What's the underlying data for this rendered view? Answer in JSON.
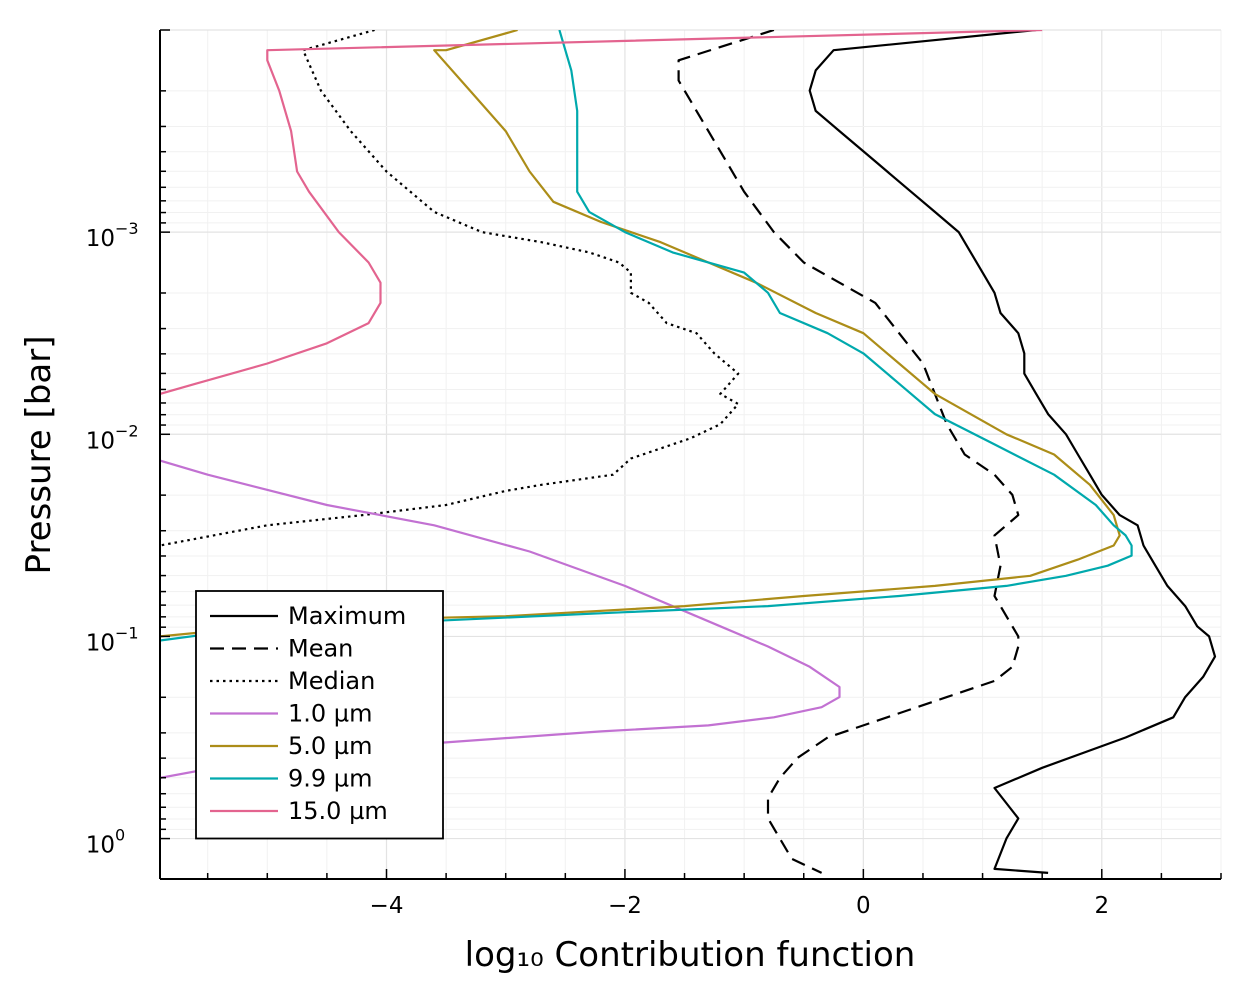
{
  "chart_data": {
    "type": "line",
    "xlabel": "log₁₀ Contribution function",
    "ylabel": "Pressure [bar]",
    "xlim": [
      -5.9,
      3.0
    ],
    "ylim_log10": [
      -4.0,
      0.2
    ],
    "y_scale": "log",
    "grid": true,
    "legend_position": "bottom-left",
    "x_ticks": [
      {
        "value": -4,
        "label": "−4"
      },
      {
        "value": -2,
        "label": "−2"
      },
      {
        "value": 0,
        "label": "0"
      },
      {
        "value": 2,
        "label": "2"
      }
    ],
    "y_ticks": [
      {
        "exp": -3,
        "base": "10",
        "sup": "−3"
      },
      {
        "exp": -2,
        "base": "10",
        "sup": "−2"
      },
      {
        "exp": -1,
        "base": "10",
        "sup": "−1"
      },
      {
        "exp": 0,
        "base": "10",
        "sup": "0"
      }
    ],
    "series": [
      {
        "name": "Maximum",
        "color": "#000000",
        "dash": "solid",
        "points": [
          [
            1.45,
            -4.0
          ],
          [
            -0.25,
            -3.9
          ],
          [
            -0.4,
            -3.8
          ],
          [
            -0.45,
            -3.7
          ],
          [
            -0.4,
            -3.6
          ],
          [
            -0.2,
            -3.5
          ],
          [
            0.1,
            -3.35
          ],
          [
            0.4,
            -3.2
          ],
          [
            0.6,
            -3.1
          ],
          [
            0.8,
            -3.0
          ],
          [
            0.9,
            -2.9
          ],
          [
            1.0,
            -2.8
          ],
          [
            1.1,
            -2.7
          ],
          [
            1.15,
            -2.6
          ],
          [
            1.3,
            -2.5
          ],
          [
            1.35,
            -2.4
          ],
          [
            1.35,
            -2.3
          ],
          [
            1.45,
            -2.2
          ],
          [
            1.55,
            -2.1
          ],
          [
            1.7,
            -2.0
          ],
          [
            1.8,
            -1.9
          ],
          [
            1.9,
            -1.8
          ],
          [
            2.0,
            -1.7
          ],
          [
            2.15,
            -1.6
          ],
          [
            2.3,
            -1.55
          ],
          [
            2.35,
            -1.45
          ],
          [
            2.45,
            -1.35
          ],
          [
            2.55,
            -1.25
          ],
          [
            2.7,
            -1.15
          ],
          [
            2.8,
            -1.05
          ],
          [
            2.9,
            -1.0
          ],
          [
            2.95,
            -0.9
          ],
          [
            2.85,
            -0.8
          ],
          [
            2.7,
            -0.7
          ],
          [
            2.6,
            -0.6
          ],
          [
            2.2,
            -0.5
          ],
          [
            1.5,
            -0.35
          ],
          [
            1.1,
            -0.25
          ],
          [
            1.3,
            -0.1
          ],
          [
            1.2,
            0.0
          ],
          [
            1.1,
            0.15
          ],
          [
            1.55,
            0.17
          ]
        ]
      },
      {
        "name": "Mean",
        "color": "#000000",
        "dash": "dashed",
        "points": [
          [
            -0.75,
            -4.0
          ],
          [
            -1.55,
            -3.85
          ],
          [
            -1.55,
            -3.75
          ],
          [
            -1.4,
            -3.6
          ],
          [
            -1.2,
            -3.4
          ],
          [
            -1.0,
            -3.2
          ],
          [
            -0.75,
            -3.0
          ],
          [
            -0.5,
            -2.85
          ],
          [
            -0.2,
            -2.75
          ],
          [
            0.1,
            -2.65
          ],
          [
            0.3,
            -2.5
          ],
          [
            0.5,
            -2.35
          ],
          [
            0.6,
            -2.2
          ],
          [
            0.7,
            -2.05
          ],
          [
            0.85,
            -1.9
          ],
          [
            1.1,
            -1.8
          ],
          [
            1.25,
            -1.7
          ],
          [
            1.3,
            -1.6
          ],
          [
            1.1,
            -1.5
          ],
          [
            1.15,
            -1.35
          ],
          [
            1.1,
            -1.2
          ],
          [
            1.3,
            -1.0
          ],
          [
            1.3,
            -0.95
          ],
          [
            1.25,
            -0.85
          ],
          [
            1.1,
            -0.78
          ],
          [
            0.7,
            -0.7
          ],
          [
            0.2,
            -0.6
          ],
          [
            -0.3,
            -0.5
          ],
          [
            -0.55,
            -0.4
          ],
          [
            -0.7,
            -0.3
          ],
          [
            -0.8,
            -0.2
          ],
          [
            -0.8,
            -0.1
          ],
          [
            -0.7,
            0.0
          ],
          [
            -0.6,
            0.1
          ],
          [
            -0.35,
            0.17
          ]
        ]
      },
      {
        "name": "Median",
        "color": "#000000",
        "dash": "dotted",
        "points": [
          [
            -4.1,
            -4.0
          ],
          [
            -4.7,
            -3.9
          ],
          [
            -4.55,
            -3.7
          ],
          [
            -4.3,
            -3.5
          ],
          [
            -4.0,
            -3.3
          ],
          [
            -3.6,
            -3.1
          ],
          [
            -3.2,
            -3.0
          ],
          [
            -2.7,
            -2.95
          ],
          [
            -2.3,
            -2.9
          ],
          [
            -2.05,
            -2.85
          ],
          [
            -1.95,
            -2.8
          ],
          [
            -1.95,
            -2.7
          ],
          [
            -1.8,
            -2.65
          ],
          [
            -1.65,
            -2.55
          ],
          [
            -1.4,
            -2.5
          ],
          [
            -1.25,
            -2.4
          ],
          [
            -1.05,
            -2.3
          ],
          [
            -1.2,
            -2.2
          ],
          [
            -1.05,
            -2.15
          ],
          [
            -1.2,
            -2.05
          ],
          [
            -1.45,
            -1.98
          ],
          [
            -1.95,
            -1.88
          ],
          [
            -2.1,
            -1.8
          ],
          [
            -2.7,
            -1.75
          ],
          [
            -3.0,
            -1.72
          ],
          [
            -3.5,
            -1.65
          ],
          [
            -4.2,
            -1.6
          ],
          [
            -5.0,
            -1.55
          ],
          [
            -5.9,
            -1.45
          ]
        ]
      },
      {
        "name": "1.0 µm",
        "color": "#C271D2",
        "dash": "solid",
        "points": [
          [
            -5.9,
            -1.87
          ],
          [
            -5.5,
            -1.8
          ],
          [
            -4.5,
            -1.65
          ],
          [
            -3.6,
            -1.55
          ],
          [
            -2.8,
            -1.42
          ],
          [
            -2.0,
            -1.25
          ],
          [
            -1.2,
            -1.05
          ],
          [
            -0.8,
            -0.95
          ],
          [
            -0.45,
            -0.85
          ],
          [
            -0.2,
            -0.75
          ],
          [
            -0.2,
            -0.7
          ],
          [
            -0.35,
            -0.65
          ],
          [
            -0.75,
            -0.6
          ],
          [
            -1.3,
            -0.56
          ],
          [
            -2.2,
            -0.53
          ],
          [
            -3.4,
            -0.48
          ],
          [
            -4.8,
            -0.42
          ],
          [
            -5.9,
            -0.3
          ]
        ]
      },
      {
        "name": "5.0 µm",
        "color": "#AC8D18",
        "dash": "solid",
        "points": [
          [
            -2.9,
            -4.0
          ],
          [
            -3.5,
            -3.9
          ],
          [
            -3.6,
            -3.9
          ],
          [
            -3.3,
            -3.7
          ],
          [
            -3.0,
            -3.5
          ],
          [
            -2.8,
            -3.3
          ],
          [
            -2.6,
            -3.15
          ],
          [
            -2.2,
            -3.05
          ],
          [
            -1.7,
            -2.95
          ],
          [
            -1.3,
            -2.85
          ],
          [
            -0.9,
            -2.75
          ],
          [
            -0.4,
            -2.6
          ],
          [
            0.0,
            -2.5
          ],
          [
            0.3,
            -2.35
          ],
          [
            0.6,
            -2.2
          ],
          [
            1.2,
            -2.0
          ],
          [
            1.6,
            -1.9
          ],
          [
            1.9,
            -1.75
          ],
          [
            2.1,
            -1.6
          ],
          [
            2.15,
            -1.5
          ],
          [
            2.1,
            -1.45
          ],
          [
            1.8,
            -1.38
          ],
          [
            1.4,
            -1.3
          ],
          [
            0.6,
            -1.25
          ],
          [
            -0.5,
            -1.2
          ],
          [
            -1.5,
            -1.15
          ],
          [
            -3.0,
            -1.1
          ],
          [
            -4.5,
            -1.08
          ],
          [
            -5.9,
            -1.0
          ]
        ]
      },
      {
        "name": "9.9 µm",
        "color": "#00A9AD",
        "dash": "solid",
        "points": [
          [
            -2.55,
            -4.0
          ],
          [
            -2.45,
            -3.8
          ],
          [
            -2.4,
            -3.6
          ],
          [
            -2.4,
            -3.4
          ],
          [
            -2.4,
            -3.2
          ],
          [
            -2.3,
            -3.1
          ],
          [
            -2.0,
            -3.0
          ],
          [
            -1.6,
            -2.9
          ],
          [
            -1.0,
            -2.8
          ],
          [
            -0.8,
            -2.7
          ],
          [
            -0.7,
            -2.6
          ],
          [
            -0.3,
            -2.5
          ],
          [
            0.0,
            -2.4
          ],
          [
            0.3,
            -2.25
          ],
          [
            0.6,
            -2.1
          ],
          [
            1.1,
            -1.95
          ],
          [
            1.6,
            -1.8
          ],
          [
            1.95,
            -1.65
          ],
          [
            2.1,
            -1.55
          ],
          [
            2.2,
            -1.5
          ],
          [
            2.25,
            -1.45
          ],
          [
            2.25,
            -1.4
          ],
          [
            2.05,
            -1.35
          ],
          [
            1.7,
            -1.3
          ],
          [
            1.2,
            -1.25
          ],
          [
            0.3,
            -1.2
          ],
          [
            -0.8,
            -1.15
          ],
          [
            -2.0,
            -1.12
          ],
          [
            -3.5,
            -1.08
          ],
          [
            -5.0,
            -1.05
          ],
          [
            -5.9,
            -0.98
          ]
        ]
      },
      {
        "name": "15.0 µm",
        "color": "#E3648F",
        "dash": "solid",
        "points": [
          [
            1.5,
            -4.0
          ],
          [
            -5.0,
            -3.9
          ],
          [
            -5.0,
            -3.85
          ],
          [
            -4.9,
            -3.7
          ],
          [
            -4.8,
            -3.5
          ],
          [
            -4.75,
            -3.3
          ],
          [
            -4.65,
            -3.2
          ],
          [
            -4.4,
            -3.0
          ],
          [
            -4.15,
            -2.85
          ],
          [
            -4.05,
            -2.75
          ],
          [
            -4.05,
            -2.65
          ],
          [
            -4.15,
            -2.55
          ],
          [
            -4.5,
            -2.45
          ],
          [
            -5.0,
            -2.35
          ],
          [
            -5.6,
            -2.25
          ],
          [
            -5.9,
            -2.2
          ]
        ]
      }
    ]
  }
}
